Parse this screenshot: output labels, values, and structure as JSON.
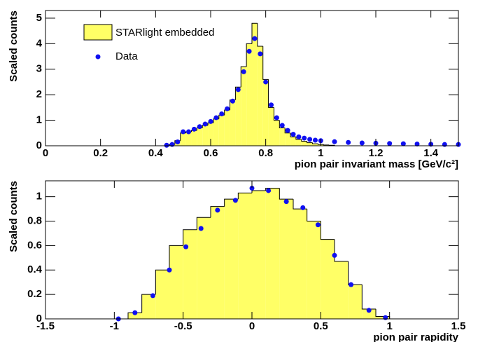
{
  "chart_data": [
    {
      "type": "histogram",
      "ylabel": "Scaled counts",
      "xlabel": "pion pair invariant mass [GeV/c²]",
      "xlim": [
        0,
        1.5
      ],
      "ylim": [
        0,
        5.3
      ],
      "xticks": [
        0,
        0.2,
        0.4,
        0.6,
        0.8,
        1,
        1.2,
        1.4
      ],
      "yticks": [
        0,
        1,
        2,
        3,
        4,
        5
      ],
      "hist_name": "STARlight embedded",
      "hist_color": "#ffff66",
      "bins": [
        0.45,
        0.47,
        0.49,
        0.51,
        0.53,
        0.55,
        0.57,
        0.59,
        0.61,
        0.63,
        0.65,
        0.67,
        0.69,
        0.71,
        0.73,
        0.75,
        0.77,
        0.79,
        0.81,
        0.83,
        0.85,
        0.87,
        0.89,
        0.91,
        0.93,
        0.95,
        0.97,
        0.99,
        1.01,
        1.03,
        1.05
      ],
      "counts": [
        0.05,
        0.2,
        0.5,
        0.55,
        0.6,
        0.7,
        0.8,
        0.9,
        1.05,
        1.2,
        1.4,
        1.8,
        2.3,
        3.1,
        4.0,
        4.8,
        3.9,
        2.6,
        1.5,
        1.0,
        0.7,
        0.5,
        0.35,
        0.25,
        0.18,
        0.12,
        0.08,
        0.05,
        0.03,
        0.02
      ],
      "points": {
        "name": "Data",
        "color": "#1010f0",
        "x": [
          0.44,
          0.46,
          0.48,
          0.5,
          0.52,
          0.54,
          0.56,
          0.58,
          0.6,
          0.62,
          0.64,
          0.66,
          0.68,
          0.7,
          0.72,
          0.74,
          0.76,
          0.78,
          0.8,
          0.82,
          0.84,
          0.86,
          0.88,
          0.9,
          0.92,
          0.94,
          0.96,
          0.98,
          1.0,
          1.05,
          1.1,
          1.15,
          1.2,
          1.25,
          1.3,
          1.35,
          1.4,
          1.45,
          1.5
        ],
        "y": [
          0.02,
          0.05,
          0.15,
          0.55,
          0.55,
          0.65,
          0.75,
          0.85,
          0.95,
          1.1,
          1.25,
          1.45,
          1.75,
          2.2,
          2.9,
          3.7,
          4.2,
          3.6,
          2.5,
          1.6,
          1.1,
          0.8,
          0.6,
          0.45,
          0.35,
          0.3,
          0.25,
          0.22,
          0.2,
          0.16,
          0.13,
          0.11,
          0.1,
          0.09,
          0.08,
          0.07,
          0.06,
          0.05,
          0.05
        ]
      },
      "legend": "upper left"
    },
    {
      "type": "histogram",
      "ylabel": "Scaled counts",
      "xlabel": "pion pair rapidity",
      "xlim": [
        -1.5,
        1.5
      ],
      "ylim": [
        0,
        1.13
      ],
      "xticks": [
        -1.5,
        -1,
        -0.5,
        0,
        0.5,
        1,
        1.5
      ],
      "yticks": [
        0,
        0.2,
        0.4,
        0.6,
        0.8,
        1
      ],
      "hist_color": "#ffff66",
      "bins": [
        -1,
        -0.9,
        -0.8,
        -0.7,
        -0.6,
        -0.5,
        -0.4,
        -0.3,
        -0.2,
        -0.1,
        0,
        0.1,
        0.2,
        0.3,
        0.4,
        0.5,
        0.6,
        0.7,
        0.8,
        0.9,
        1
      ],
      "counts": [
        0,
        0.05,
        0.2,
        0.4,
        0.6,
        0.73,
        0.83,
        0.92,
        0.98,
        1.03,
        1.05,
        1.07,
        0.98,
        0.9,
        0.8,
        0.65,
        0.47,
        0.28,
        0.08,
        0.02
      ],
      "points": {
        "color": "#1010f0",
        "x": [
          -0.97,
          -0.85,
          -0.72,
          -0.6,
          -0.48,
          -0.37,
          -0.25,
          -0.12,
          0,
          0.12,
          0.25,
          0.37,
          0.48,
          0.6,
          0.72,
          0.85,
          0.97
        ],
        "y": [
          0,
          0.05,
          0.19,
          0.4,
          0.59,
          0.74,
          0.89,
          0.97,
          1.07,
          1.05,
          0.96,
          0.91,
          0.77,
          0.52,
          0.28,
          0.07,
          0.01
        ]
      }
    }
  ]
}
